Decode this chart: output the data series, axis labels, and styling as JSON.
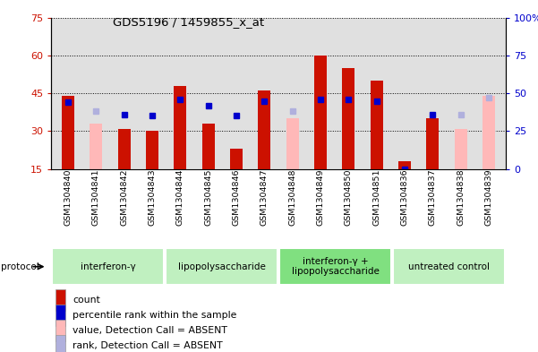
{
  "title": "GDS5196 / 1459855_x_at",
  "samples": [
    "GSM1304840",
    "GSM1304841",
    "GSM1304842",
    "GSM1304843",
    "GSM1304844",
    "GSM1304845",
    "GSM1304846",
    "GSM1304847",
    "GSM1304848",
    "GSM1304849",
    "GSM1304850",
    "GSM1304851",
    "GSM1304836",
    "GSM1304837",
    "GSM1304838",
    "GSM1304839"
  ],
  "count_values": [
    44,
    0,
    31,
    30,
    48,
    33,
    23,
    46,
    0,
    60,
    55,
    50,
    18,
    35,
    0,
    0
  ],
  "absent_value_bars": [
    0,
    33,
    0,
    0,
    0,
    0,
    0,
    0,
    35,
    0,
    0,
    0,
    0,
    0,
    31,
    44
  ],
  "percentile_rank": [
    44,
    0,
    36,
    35,
    46,
    42,
    35,
    45,
    0,
    46,
    46,
    45,
    0,
    36,
    36,
    0
  ],
  "absent_rank_bars": [
    0,
    38,
    0,
    0,
    0,
    0,
    0,
    0,
    38,
    0,
    0,
    0,
    0,
    0,
    36,
    47
  ],
  "count_is_absent": [
    false,
    true,
    false,
    false,
    false,
    false,
    false,
    false,
    true,
    false,
    false,
    false,
    false,
    false,
    true,
    true
  ],
  "protocols": [
    {
      "label": "interferon-γ",
      "start": 0,
      "end": 4
    },
    {
      "label": "lipopolysaccharide",
      "start": 4,
      "end": 8
    },
    {
      "label": "interferon-γ +\nlipopolysaccharide",
      "start": 8,
      "end": 12
    },
    {
      "label": "untreated control",
      "start": 12,
      "end": 16
    }
  ],
  "ylim_left": [
    15,
    75
  ],
  "ylim_right": [
    0,
    100
  ],
  "yticks_left": [
    15,
    30,
    45,
    60,
    75
  ],
  "yticks_right": [
    0,
    25,
    50,
    75,
    100
  ],
  "bar_color_red": "#cc1100",
  "bar_color_absent": "#ffb8b8",
  "dot_color_blue": "#0000cc",
  "dot_color_absent": "#b0b0dd",
  "bg_plot": "#e0e0e0",
  "bg_protocol_light": "#c0f0c0",
  "bg_protocol_medium": "#80e080",
  "legend_items": [
    {
      "label": "count",
      "color": "#cc1100"
    },
    {
      "label": "percentile rank within the sample",
      "color": "#0000cc"
    },
    {
      "label": "value, Detection Call = ABSENT",
      "color": "#ffb8b8"
    },
    {
      "label": "rank, Detection Call = ABSENT",
      "color": "#b0b0dd"
    }
  ]
}
